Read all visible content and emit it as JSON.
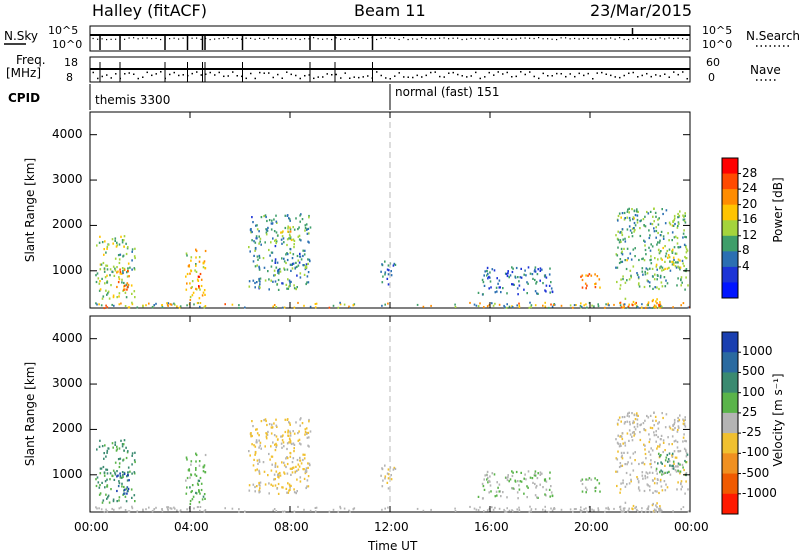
{
  "header": {
    "station": "Halley (fitACF)",
    "beam": "Beam 11",
    "date": "23/Mar/2015"
  },
  "status": {
    "nsky_label": "N.Sky",
    "nsearch_label": "N.Search",
    "nsky_ticks": [
      "10^5",
      "10^0"
    ],
    "nsearch_ticks": [
      "10^5",
      "10^0"
    ],
    "freq_label_top": "Freq.",
    "freq_label_unit": "[MHz]",
    "freq_ticks": [
      "18",
      "8"
    ],
    "nave_label": "Nave",
    "nave_ticks": [
      "60",
      "0"
    ],
    "cpid_label": "CPID",
    "cpid_entries": [
      {
        "name": "themis 3300",
        "start_hour": 0
      },
      {
        "name": "normal (fast) 151",
        "start_hour": 12
      }
    ]
  },
  "axes": {
    "x_label": "Time UT",
    "x_ticks": [
      "00:00",
      "04:00",
      "08:00",
      "12:00",
      "16:00",
      "20:00",
      "00:00"
    ],
    "y_label": "Slant Range [km]",
    "y_ticks": [
      "1000",
      "2000",
      "3000",
      "4000"
    ]
  },
  "power_scale": {
    "label": "Power [dB]",
    "ticks": [
      "28",
      "24",
      "20",
      "16",
      "12",
      "8",
      "4"
    ],
    "colors": [
      "#ff0000",
      "#ff4a00",
      "#ff8c00",
      "#ffc400",
      "#a4d43c",
      "#3f9e6a",
      "#2b6fb2",
      "#1c34d6",
      "#0015ff"
    ]
  },
  "velocity_scale": {
    "label": "Velocity [m s⁻¹]",
    "ticks": [
      "1000",
      "500",
      "100",
      "25",
      "-25",
      "-100",
      "-500",
      "-1000"
    ],
    "colors": [
      "#1a3fb0",
      "#2a6aa0",
      "#3a8a70",
      "#5ab44a",
      "#b4b4b4",
      "#f0c030",
      "#f09020",
      "#f05a00",
      "#ff1a00"
    ]
  },
  "chart_data": {
    "type": "heatmap",
    "title": "Halley (fitACF) Beam 11 23/Mar/2015",
    "xlabel": "Time UT",
    "ylabel": "Slant Range [km]",
    "x_range_hours": [
      0,
      24
    ],
    "y_range_km": [
      180,
      4500
    ],
    "panels": [
      {
        "name": "Power [dB]",
        "color_range": [
          0,
          30
        ]
      },
      {
        "name": "Velocity [m s-1]",
        "color_range": [
          -1000,
          1000
        ]
      }
    ],
    "scatter_regions": [
      {
        "t0": 0.2,
        "t1": 1.8,
        "r0": 400,
        "r1": 1800,
        "power": 14,
        "velocity": 400
      },
      {
        "t0": 1.0,
        "t1": 1.6,
        "r0": 600,
        "r1": 1100,
        "power": 24,
        "velocity": 900
      },
      {
        "t0": 3.8,
        "t1": 4.6,
        "r0": 350,
        "r1": 1500,
        "power": 18,
        "velocity": 250
      },
      {
        "t0": 4.2,
        "t1": 4.45,
        "r0": 600,
        "r1": 1000,
        "power": 26,
        "velocity": 450
      },
      {
        "t0": 6.3,
        "t1": 8.8,
        "r0": 600,
        "r1": 2300,
        "power": 10,
        "velocity": -150
      },
      {
        "t0": 7.4,
        "t1": 8.4,
        "r0": 1600,
        "r1": 2000,
        "power": 16,
        "velocity": -200
      },
      {
        "t0": 11.6,
        "t1": 12.2,
        "r0": 700,
        "r1": 1300,
        "power": 8,
        "velocity": -100
      },
      {
        "t0": 15.5,
        "t1": 18.5,
        "r0": 500,
        "r1": 1100,
        "power": 8,
        "velocity": 100
      },
      {
        "t0": 19.6,
        "t1": 20.4,
        "r0": 600,
        "r1": 1000,
        "power": 22,
        "velocity": 150
      },
      {
        "t0": 21.0,
        "t1": 23.9,
        "r0": 600,
        "r1": 2400,
        "power": 12,
        "velocity": -50
      },
      {
        "t0": 21.2,
        "t1": 22.8,
        "r0": 200,
        "r1": 450,
        "power": 20,
        "velocity": -80
      },
      {
        "t0": 22.6,
        "t1": 23.9,
        "r0": 1000,
        "r1": 1500,
        "power": 16,
        "velocity": 350
      }
    ],
    "grid": false,
    "legend": "right colour bars"
  }
}
